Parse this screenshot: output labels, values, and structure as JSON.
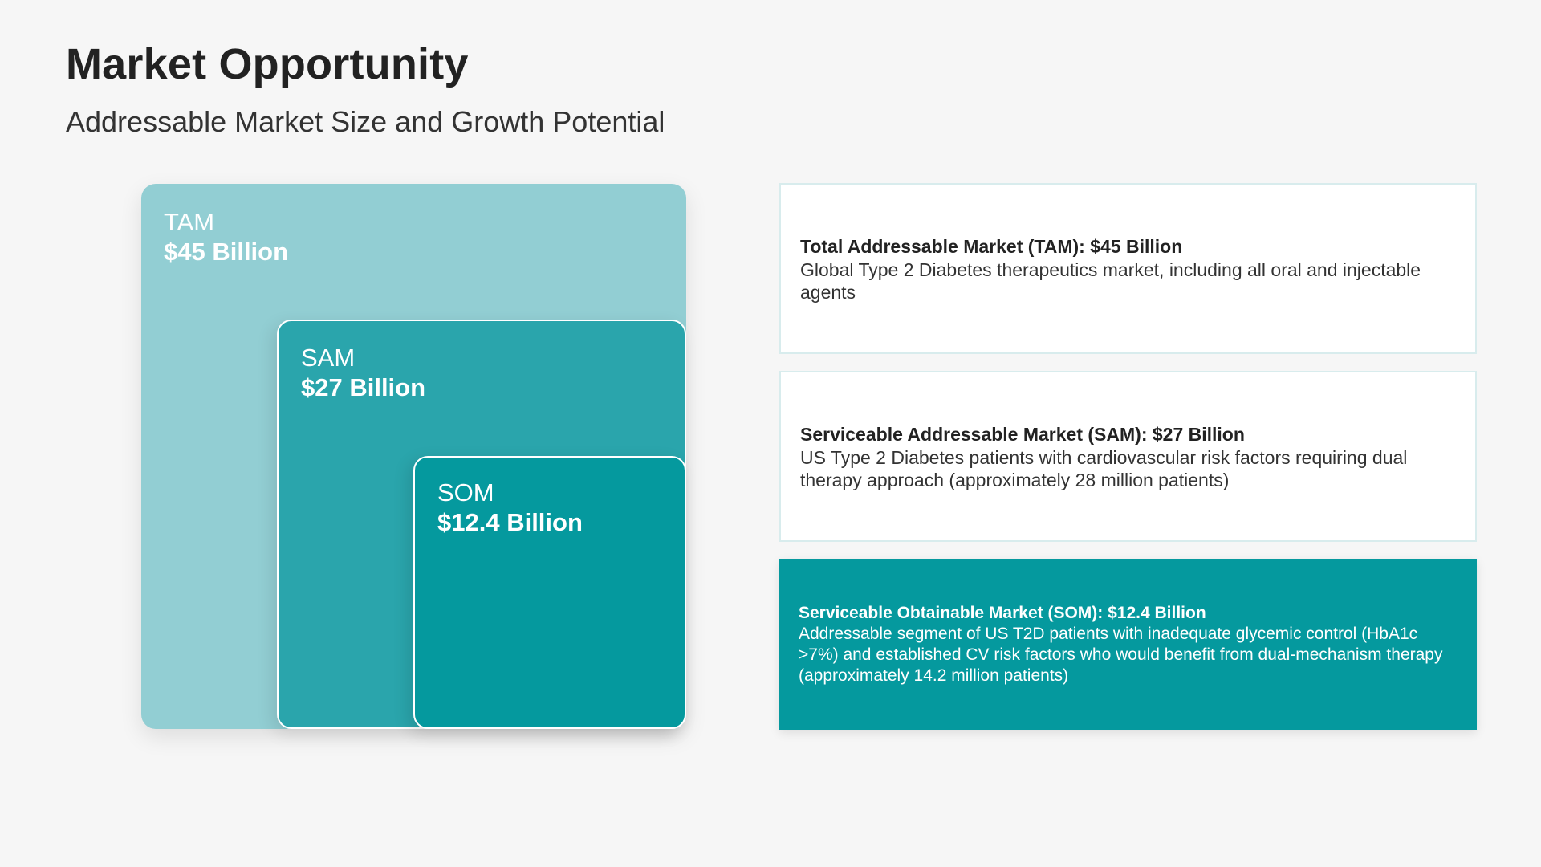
{
  "header": {
    "title": "Market Opportunity",
    "subtitle": "Addressable Market Size and Growth Potential"
  },
  "colors": {
    "tam": "#92ced3",
    "sam": "#2aa5ac",
    "som": "#05999e",
    "background": "#f6f6f6"
  },
  "markets": [
    {
      "label": "TAM",
      "value": "$45 Billion",
      "amount_billion": 45
    },
    {
      "label": "SAM",
      "value": "$27 Billion",
      "amount_billion": 27
    },
    {
      "label": "SOM",
      "value": "$12.4 Billion",
      "amount_billion": 12.4
    }
  ],
  "cards": [
    {
      "title": "Total Addressable Market (TAM): $45 Billion",
      "description": "Global Type 2 Diabetes therapeutics market, including all oral and injectable agents"
    },
    {
      "title": "Serviceable Addressable Market (SAM): $27 Billion",
      "description": "US Type 2 Diabetes patients with cardiovascular risk factors requiring dual therapy approach (approximately 28 million patients)"
    },
    {
      "title": "Serviceable Obtainable Market (SOM): $12.4 Billion",
      "description": "Addressable segment of US T2D patients with inadequate glycemic control (HbA1c >7%) and established CV risk factors who would benefit from dual-mechanism therapy (approximately 14.2 million patients)"
    }
  ]
}
